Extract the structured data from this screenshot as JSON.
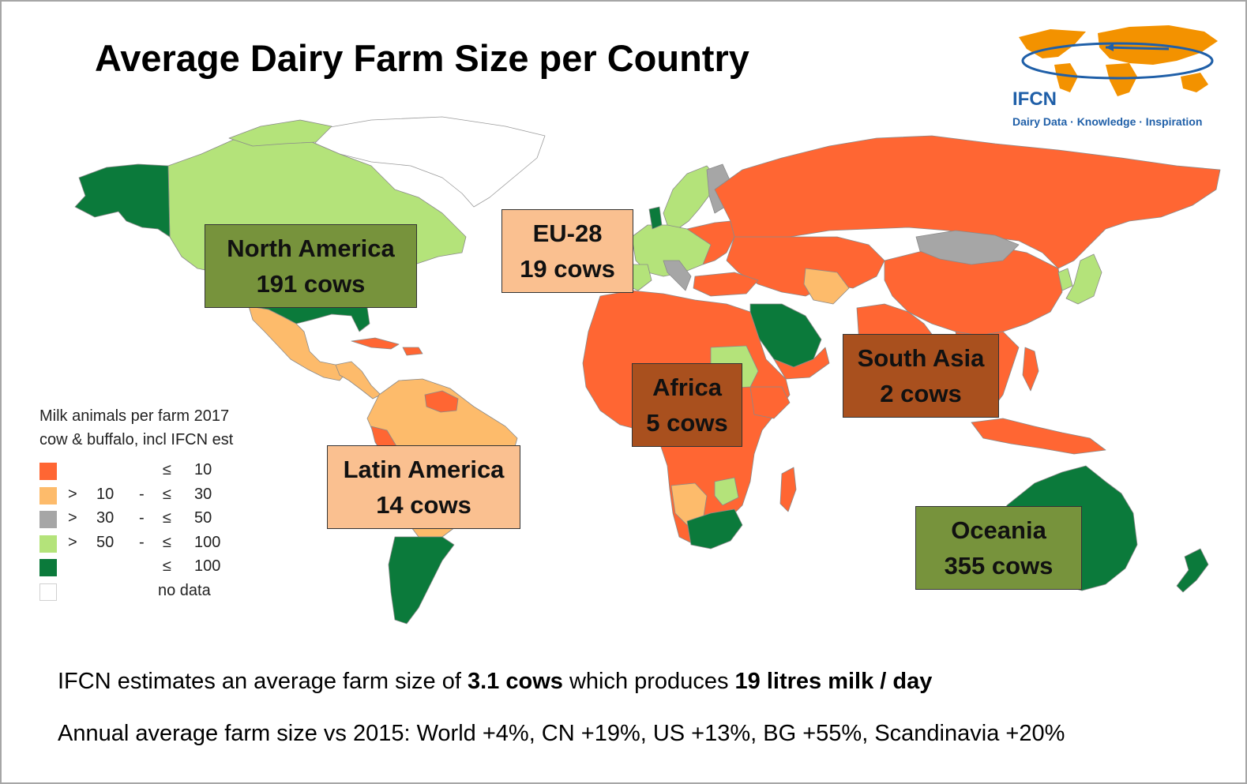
{
  "title": "Average Dairy Farm Size per Country",
  "logo": {
    "name": "IFCN",
    "tagline": "Dairy Data · Knowledge · Inspiration",
    "colors": {
      "land": "#f39200",
      "text": "#1f5fa8"
    }
  },
  "colors": {
    "le10": "#ff6633",
    "r10_30": "#fdbb6b",
    "r30_50": "#a6a6a6",
    "r50_100": "#b4e37a",
    "gt100": "#0b7a3b",
    "no_data": "#ffffff"
  },
  "regions": [
    {
      "name": "North America",
      "value": "191 cows",
      "bg": "#77933c"
    },
    {
      "name": "EU-28",
      "value": "19 cows",
      "bg": "#fac090"
    },
    {
      "name": "Latin America",
      "value": "14 cows",
      "bg": "#fac090"
    },
    {
      "name": "Africa",
      "value": "5 cows",
      "bg": "#a9501e"
    },
    {
      "name": "South Asia",
      "value": "2 cows",
      "bg": "#a9501e"
    },
    {
      "name": "Oceania",
      "value": "355 cows",
      "bg": "#77933c"
    }
  ],
  "legend": {
    "title_line1": "Milk animals per farm 2017",
    "title_line2": "cow & buffalo, incl IFCN est",
    "items": [
      {
        "gt": "",
        "low": "",
        "dash": "",
        "le": "≤",
        "high": "10",
        "color": "#ff6633"
      },
      {
        "gt": ">",
        "low": "10",
        "dash": "-",
        "le": "≤",
        "high": "30",
        "color": "#fdbb6b"
      },
      {
        "gt": ">",
        "low": "30",
        "dash": "-",
        "le": "≤",
        "high": "50",
        "color": "#a6a6a6"
      },
      {
        "gt": ">",
        "low": "50",
        "dash": "-",
        "le": "≤",
        "high": "100",
        "color": "#b4e37a"
      },
      {
        "gt": "",
        "low": "",
        "dash": "",
        "le": "≤",
        "high": "100",
        "color": "#0b7a3b"
      }
    ],
    "no_data_label": "no data"
  },
  "footer": {
    "line1_pre": "IFCN estimates an average farm size of ",
    "line1_b1": "3.1 cows",
    "line1_mid": " which produces ",
    "line1_b2": "19 litres milk / day",
    "line2": "Annual average farm size vs 2015: World +4%, CN +19%, US +13%, BG +55%, Scandinavia +20%"
  }
}
